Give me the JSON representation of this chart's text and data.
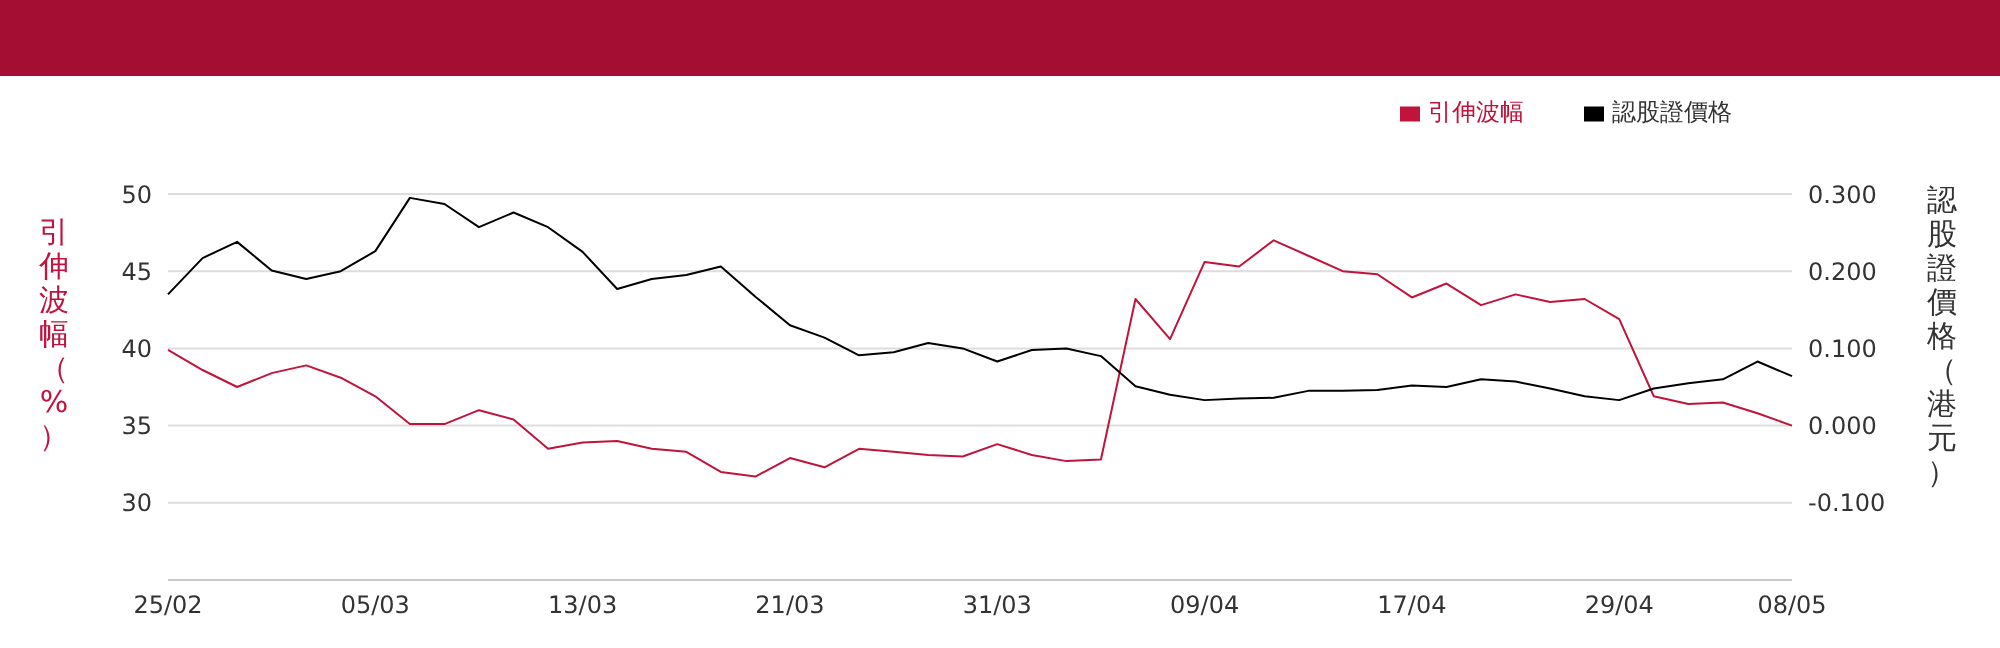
{
  "chart_data": {
    "type": "line",
    "categories": [
      "25/02",
      null,
      null,
      null,
      null,
      null,
      "05/03",
      null,
      null,
      null,
      null,
      null,
      "13/03",
      null,
      null,
      null,
      null,
      null,
      "21/03",
      null,
      null,
      null,
      null,
      null,
      "31/03",
      null,
      null,
      null,
      null,
      null,
      "09/04",
      null,
      null,
      null,
      null,
      null,
      "17/04",
      null,
      null,
      null,
      null,
      null,
      "29/04",
      null,
      null,
      null,
      null,
      "08/05"
    ],
    "series": [
      {
        "name": "引伸波幅",
        "color": "#c0143c",
        "values": [
          39.9,
          38.6,
          37.5,
          38.4,
          38.9,
          38.1,
          36.9,
          35.1,
          35.1,
          36.0,
          35.4,
          33.5,
          33.9,
          34.0,
          33.5,
          33.3,
          32.0,
          31.7,
          32.9,
          32.3,
          33.5,
          33.3,
          33.1,
          33.0,
          33.8,
          33.1,
          32.7,
          32.8,
          43.2,
          40.6,
          45.6,
          45.3,
          47.0,
          46.0,
          45.0,
          44.8,
          43.3,
          44.2,
          42.8,
          43.5,
          43.0,
          43.2,
          41.9,
          36.9,
          36.4,
          36.5,
          35.8,
          35.0
        ]
      },
      {
        "name": "認股證價格",
        "color": "#000000",
        "axis": "y2",
        "values": [
          0.17,
          0.217,
          0.238,
          0.201,
          0.19,
          0.2,
          0.226,
          0.295,
          0.287,
          0.257,
          0.276,
          0.257,
          0.225,
          0.177,
          0.19,
          0.195,
          0.206,
          0.167,
          0.13,
          0.114,
          0.091,
          0.095,
          0.107,
          0.1,
          0.083,
          0.098,
          0.1,
          0.09,
          0.051,
          0.04,
          0.033,
          0.035,
          0.036,
          0.045,
          0.045,
          0.046,
          0.052,
          0.05,
          0.06,
          0.057,
          0.048,
          0.038,
          0.033,
          0.048,
          0.055,
          0.06,
          0.083,
          0.064
        ]
      }
    ],
    "ylabel": "引伸波幅（%）",
    "y2label": "認股證價格（港元）",
    "ylim": [
      25,
      50
    ],
    "yticks": [
      30,
      35,
      40,
      45,
      50
    ],
    "y2lim": [
      -0.2,
      0.3
    ],
    "y2ticks": [
      {
        "value": -0.1,
        "label": "-0.100"
      },
      {
        "value": 0,
        "label": "0.000"
      },
      {
        "value": 0.1,
        "label": "0.100"
      },
      {
        "value": 0.2,
        "label": "0.200"
      },
      {
        "value": 0.3,
        "label": "0.300"
      }
    ],
    "grid": "y",
    "legend": "top right",
    "marker": "none",
    "line_style": "solid"
  }
}
